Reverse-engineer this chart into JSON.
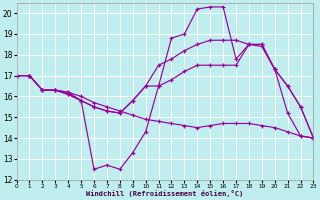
{
  "bg_color": "#c0eeee",
  "grid_color": "#ffffff",
  "line_color": "#990099",
  "xlim": [
    0,
    23
  ],
  "ylim": [
    12,
    20.5
  ],
  "yticks": [
    12,
    13,
    14,
    15,
    16,
    17,
    18,
    19,
    20
  ],
  "xticks": [
    0,
    1,
    2,
    3,
    4,
    5,
    6,
    7,
    8,
    9,
    10,
    11,
    12,
    13,
    14,
    15,
    16,
    17,
    18,
    19,
    20,
    21,
    22,
    23
  ],
  "xlabel": "Windchill (Refroidissement éolien,°C)",
  "series": [
    {
      "x": [
        0,
        1,
        2,
        3,
        4,
        5,
        6,
        7,
        8,
        9,
        10,
        11,
        12,
        13,
        14,
        15,
        16,
        17,
        18,
        19,
        20,
        21,
        22,
        23
      ],
      "y": [
        17,
        17,
        16.3,
        16.3,
        16.2,
        15.8,
        12.5,
        12.7,
        12.5,
        13.3,
        14.3,
        16.5,
        18.8,
        19.0,
        20.2,
        20.3,
        20.3,
        17.8,
        18.5,
        18.5,
        17.3,
        15.2,
        14.1,
        14.0
      ]
    },
    {
      "x": [
        0,
        1,
        2,
        3,
        4,
        5,
        6,
        7,
        8,
        9,
        10,
        11,
        12,
        13,
        14,
        15,
        16,
        17,
        18,
        19,
        20,
        21,
        22,
        23
      ],
      "y": [
        17,
        17,
        16.3,
        16.3,
        16.2,
        16.0,
        15.7,
        15.5,
        15.3,
        15.1,
        14.9,
        14.8,
        14.7,
        14.6,
        14.5,
        14.6,
        14.7,
        14.7,
        14.7,
        14.6,
        14.5,
        14.3,
        14.1,
        14.0
      ]
    },
    {
      "x": [
        0,
        1,
        2,
        3,
        4,
        5,
        6,
        7,
        8,
        9,
        10,
        11,
        12,
        13,
        14,
        15,
        16,
        17,
        18,
        19,
        20,
        21,
        22,
        23
      ],
      "y": [
        17,
        17,
        16.3,
        16.3,
        16.1,
        15.8,
        15.5,
        15.3,
        15.2,
        15.8,
        16.5,
        17.5,
        17.8,
        18.2,
        18.5,
        18.7,
        18.7,
        18.7,
        18.5,
        18.4,
        17.3,
        16.5,
        15.5,
        14.0
      ]
    },
    {
      "x": [
        0,
        1,
        2,
        3,
        4,
        5,
        6,
        7,
        8,
        9,
        10,
        11,
        12,
        13,
        14,
        15,
        16,
        17,
        18,
        19,
        20,
        21,
        22,
        23
      ],
      "y": [
        17,
        17,
        16.3,
        16.3,
        16.1,
        15.8,
        15.5,
        15.3,
        15.2,
        15.8,
        16.5,
        16.5,
        16.8,
        17.2,
        17.5,
        17.5,
        17.5,
        17.5,
        18.5,
        18.5,
        17.3,
        16.5,
        15.5,
        14.0
      ]
    }
  ]
}
